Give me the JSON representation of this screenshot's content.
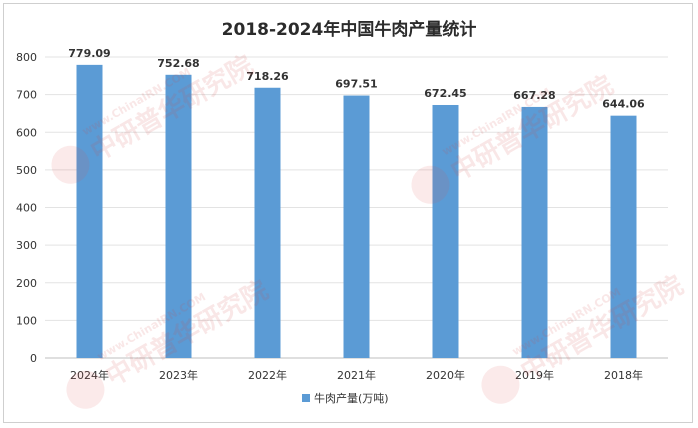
{
  "chart_data": {
    "type": "bar",
    "title": "2018-2024年中国牛肉产量统计",
    "categories": [
      "2024年",
      "2023年",
      "2022年",
      "2021年",
      "2020年",
      "2019年",
      "2018年"
    ],
    "series": [
      {
        "name": "牛肉产量(万吨)",
        "values": [
          779.09,
          752.68,
          718.26,
          697.51,
          672.45,
          667.28,
          644.06
        ]
      }
    ],
    "data_labels": [
      "779.09",
      "752.68",
      "718.26",
      "697.51",
      "672.45",
      "667.28",
      "644.06"
    ],
    "yticks": [
      "0",
      "100",
      "200",
      "300",
      "400",
      "500",
      "600",
      "700",
      "800"
    ],
    "ylim": [
      0,
      800
    ],
    "grid": true,
    "legend_position": "bottom",
    "bar_color": "#5b9bd5"
  },
  "watermark": {
    "url_text": "www.ChinaIRN.COM",
    "brand_text": "中研普华研究院"
  }
}
